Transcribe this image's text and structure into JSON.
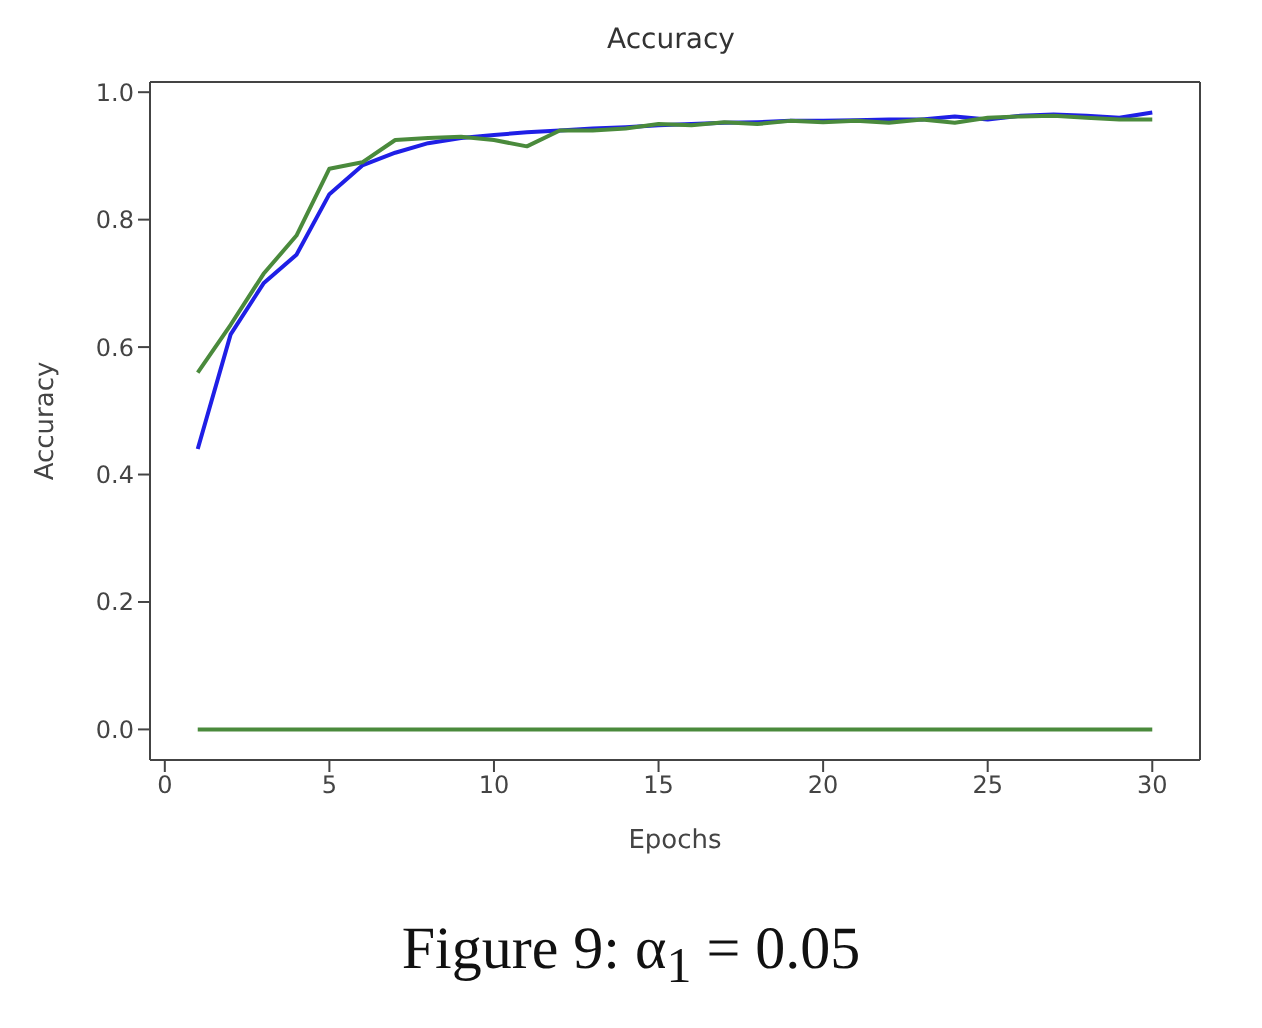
{
  "chart_data": {
    "type": "line",
    "title": "Accuracy",
    "xlabel": "Epochs",
    "ylabel": "Accuracy",
    "annotations": [
      "Figure 9: α$_{1}$ = 0.05"
    ],
    "x": [
      1,
      2,
      3,
      4,
      5,
      6,
      7,
      8,
      9,
      10,
      11,
      12,
      13,
      14,
      15,
      16,
      17,
      18,
      19,
      20,
      21,
      22,
      23,
      24,
      25,
      26,
      27,
      28,
      29,
      30
    ],
    "xlim": [
      -0.45,
      31.45
    ],
    "xticks": [
      0,
      5,
      10,
      15,
      20,
      25,
      30
    ],
    "ylim": [
      -0.048,
      1.016
    ],
    "yticks": [
      {
        "value": 0,
        "label": "0.0"
      },
      {
        "value": 0.2,
        "label": "0.2"
      },
      {
        "value": 0.4,
        "label": "0.4"
      },
      {
        "value": 0.6,
        "label": "0.6"
      },
      {
        "value": 0.8,
        "label": "0.8"
      },
      {
        "value": 1,
        "label": "1.0"
      }
    ],
    "marker": "none",
    "line_style": "solid",
    "series": [
      {
        "color": "#1f1fe6",
        "values": [
          0.44,
          0.62,
          0.7,
          0.745,
          0.84,
          0.885,
          0.905,
          0.92,
          0.928,
          0.933,
          0.937,
          0.94,
          0.943,
          0.945,
          0.948,
          0.95,
          0.952,
          0.953,
          0.955,
          0.955,
          0.956,
          0.957,
          0.957,
          0.962,
          0.957,
          0.963,
          0.965,
          0.963,
          0.96,
          0.968
        ]
      },
      {
        "color": "#4a8a3c",
        "values": [
          0.56,
          0.635,
          0.715,
          0.775,
          0.88,
          0.89,
          0.925,
          0.928,
          0.93,
          0.925,
          0.915,
          0.94,
          0.94,
          0.943,
          0.95,
          0.948,
          0.953,
          0.95,
          0.955,
          0.953,
          0.955,
          0.952,
          0.957,
          0.952,
          0.96,
          0.962,
          0.963,
          0.96,
          0.957,
          0.957
        ]
      },
      {
        "color": "#4a8a3c",
        "values": [
          0,
          0,
          0,
          0,
          0,
          0,
          0,
          0,
          0,
          0,
          0,
          0,
          0,
          0,
          0,
          0,
          0,
          0,
          0,
          0,
          0,
          0,
          0,
          0,
          0,
          0,
          0,
          0,
          0,
          0
        ]
      }
    ]
  }
}
